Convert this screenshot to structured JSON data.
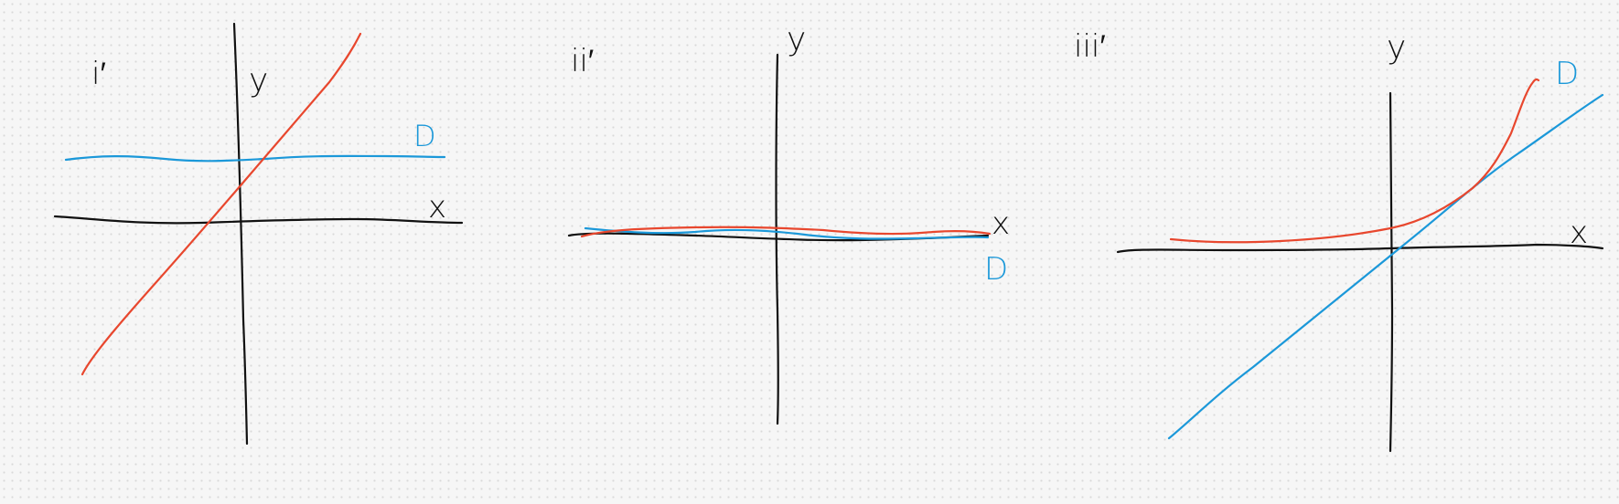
{
  "colors": {
    "axes": "#111111",
    "red_curve": "#e8472e",
    "blue_curve": "#1b98d9",
    "background": "#f6f6f6"
  },
  "sketches": [
    {
      "label": "i′",
      "x_axis_label": "x",
      "y_axis_label": "y",
      "curve_label": "D",
      "red_curve": "rising straight line",
      "blue_curve": "horizontal line above x-axis"
    },
    {
      "label": "ii′",
      "x_axis_label": "x",
      "y_axis_label": "y",
      "curve_label": "D",
      "red_curve": "flat line along x-axis",
      "blue_curve": "flat line along x-axis"
    },
    {
      "label": "iii′",
      "x_axis_label": "x",
      "y_axis_label": "y",
      "curve_label": "D",
      "red_curve": "flat then sharply rising curve",
      "blue_curve": "rising straight line through origin"
    }
  ]
}
